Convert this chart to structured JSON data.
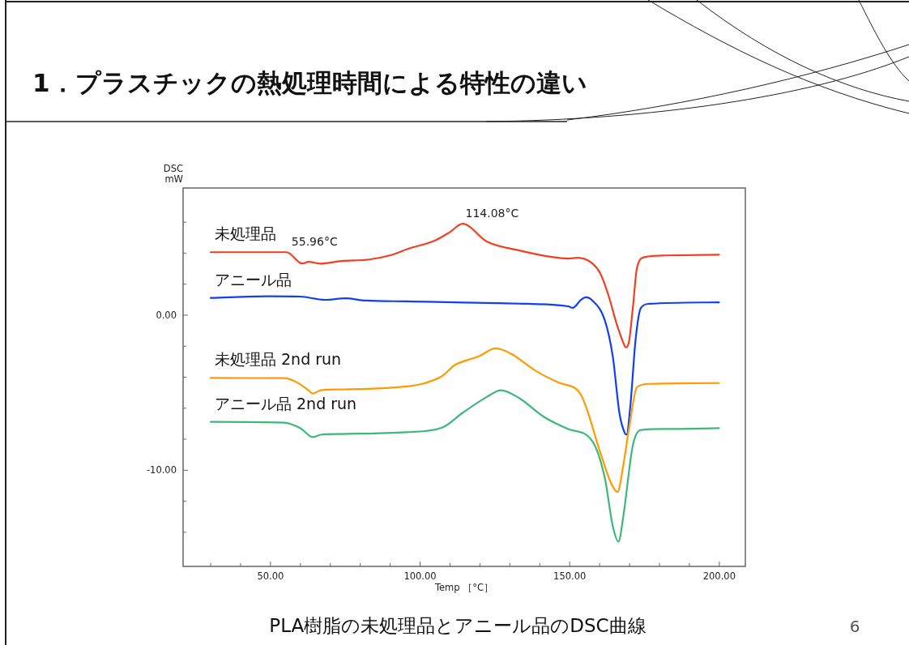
{
  "chart_data": {
    "type": "line",
    "title": "1．プラスチックの熱処理時間による特性の違い",
    "xlabel": "Temp ［°C］",
    "ylabel": "DSC\nmW",
    "xlim": [
      20.8,
      208.7
    ],
    "ylim": [
      -16.2,
      8.2
    ],
    "xticks": [
      {
        "value": 30,
        "label": null
      },
      {
        "value": 40,
        "label": null
      },
      {
        "value": 50,
        "label": "50.00"
      },
      {
        "value": 60,
        "label": null
      },
      {
        "value": 70,
        "label": null
      },
      {
        "value": 80,
        "label": null
      },
      {
        "value": 90,
        "label": null
      },
      {
        "value": 100,
        "label": "100.00"
      },
      {
        "value": 110,
        "label": null
      },
      {
        "value": 120,
        "label": null
      },
      {
        "value": 130,
        "label": null
      },
      {
        "value": 140,
        "label": null
      },
      {
        "value": 150,
        "label": "150.00"
      },
      {
        "value": 160,
        "label": null
      },
      {
        "value": 170,
        "label": null
      },
      {
        "value": 180,
        "label": null
      },
      {
        "value": 190,
        "label": null
      },
      {
        "value": 200,
        "label": "200.00"
      }
    ],
    "yticks": [
      {
        "value": -14,
        "label": null
      },
      {
        "value": -12,
        "label": null
      },
      {
        "value": -10,
        "label": "-10.00"
      },
      {
        "value": -8,
        "label": null
      },
      {
        "value": -6,
        "label": null
      },
      {
        "value": -4,
        "label": null
      },
      {
        "value": -2,
        "label": null
      },
      {
        "value": 0,
        "label": "0.00"
      },
      {
        "value": 2,
        "label": null
      },
      {
        "value": 4,
        "label": null
      },
      {
        "value": 6,
        "label": null
      }
    ],
    "series": [
      {
        "name": "未処理品",
        "color": "#f04020",
        "x": [
          30,
          55.4,
          60.6,
          62.7,
          66.8,
          73.6,
          83,
          89.8,
          96.6,
          104.7,
          110,
          114.2,
          122.4,
          133.2,
          144,
          149.5,
          152.7,
          157.6,
          160.3,
          163,
          165.7,
          167.9,
          168.7,
          169.8,
          171.1,
          172.5,
          175.2,
          182,
          199.9
        ],
        "values": [
          4.06,
          4.06,
          3.33,
          3.44,
          3.32,
          3.49,
          3.59,
          3.85,
          4.32,
          4.79,
          5.36,
          5.89,
          4.74,
          4.17,
          3.75,
          3.65,
          3.7,
          3.33,
          2.66,
          1.25,
          -0.57,
          -1.77,
          -2.08,
          -1.72,
          0.47,
          3.07,
          3.75,
          3.85,
          3.9
        ]
      },
      {
        "name": "アニール品",
        "color": "#1040f0",
        "x": [
          30,
          49.2,
          60,
          68.2,
          75,
          81.7,
          95.3,
          111.5,
          135.9,
          149.5,
          151,
          153.8,
          155.4,
          157.6,
          161.7,
          164.4,
          166.6,
          168.4,
          169,
          170.3,
          172,
          173.8,
          176.6,
          199.9
        ],
        "values": [
          1.11,
          1.22,
          1.2,
          0.99,
          1.09,
          0.94,
          0.89,
          0.83,
          0.73,
          0.57,
          0.47,
          0.99,
          1.15,
          0.94,
          -0.31,
          -2.66,
          -6.3,
          -7.6,
          -7.7,
          -5.78,
          -1.61,
          0.47,
          0.73,
          0.83
        ]
      },
      {
        "name": "未処理品 2nd run",
        "color": "#ff9a00",
        "x": [
          30,
          54.6,
          58.7,
          62.7,
          64.1,
          66.8,
          73.6,
          89.8,
          100.7,
          107.5,
          111.5,
          119.6,
          125.3,
          130.5,
          138.6,
          146.7,
          153.5,
          160.3,
          163.6,
          166,
          167.9,
          169.8,
          172.5,
          176.6,
          199.9
        ],
        "values": [
          -4.05,
          -4.06,
          -4.32,
          -4.84,
          -5.05,
          -4.84,
          -4.79,
          -4.69,
          -4.43,
          -3.91,
          -3.23,
          -2.66,
          -2.14,
          -2.5,
          -3.59,
          -4.38,
          -5.05,
          -8.9,
          -10.73,
          -11.4,
          -9.69,
          -7.34,
          -4.64,
          -4.43,
          -4.38
        ]
      },
      {
        "name": "アニール品 2nd run",
        "color": "#3cb878",
        "x": [
          30,
          54.6,
          60,
          64.1,
          66.8,
          73.6,
          95.3,
          107.5,
          114.2,
          122.4,
          127,
          133.2,
          141.4,
          149.5,
          157.6,
          161.7,
          164.4,
          166.3,
          167.9,
          171.1,
          173.8,
          182,
          199.9
        ],
        "values": [
          -6.88,
          -6.93,
          -7.29,
          -7.86,
          -7.71,
          -7.66,
          -7.55,
          -7.24,
          -6.3,
          -5.26,
          -4.84,
          -5.36,
          -6.56,
          -7.34,
          -8.13,
          -10.47,
          -13.6,
          -14.6,
          -13.0,
          -8.39,
          -7.4,
          -7.34,
          -7.29
        ]
      }
    ],
    "annotations": [
      {
        "text": "55.96°C",
        "x": 55.96,
        "y": 4.06
      },
      {
        "text": "114.08°C",
        "x": 114.08,
        "y": 5.89
      },
      "PLA樹脂の未処理品とアニール品のDSC曲線",
      "6"
    ],
    "grid": false
  }
}
